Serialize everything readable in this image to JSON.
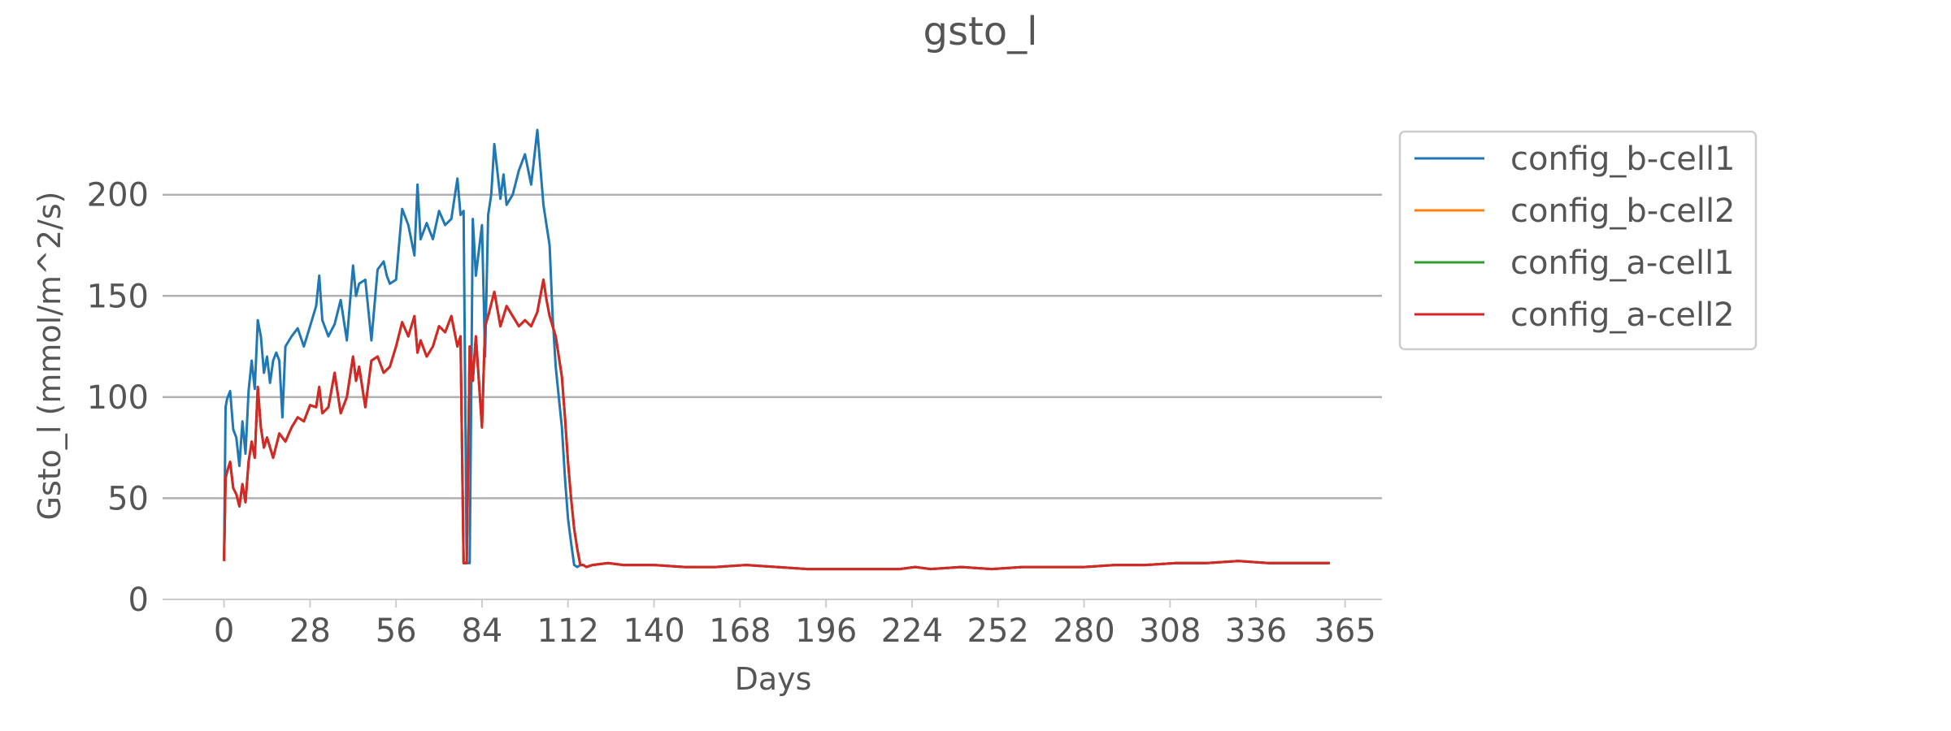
{
  "chart_data": {
    "type": "line",
    "title": "gsto_l",
    "xlabel": "Days",
    "ylabel": "Gsto_l (mmol/m^2/s)",
    "xlim": [
      -20,
      377
    ],
    "ylim": [
      0,
      232
    ],
    "xticks": [
      0,
      28,
      56,
      84,
      112,
      140,
      168,
      196,
      224,
      252,
      280,
      308,
      336,
      365
    ],
    "yticks": [
      0,
      50,
      100,
      150,
      200
    ],
    "grid": "horizontal",
    "legend_position": "outside-right",
    "series": [
      {
        "name": "config_b-cell1",
        "color": "#1f77b4",
        "x": [
          0,
          0.5,
          1,
          2,
          3,
          4,
          5,
          6,
          7,
          8,
          9,
          10,
          11,
          12,
          13,
          14,
          15,
          16,
          17,
          18,
          19,
          20,
          22,
          24,
          26,
          28,
          30,
          31,
          32,
          34,
          36,
          38,
          40,
          42,
          43,
          44,
          46,
          48,
          50,
          52,
          53,
          54,
          56,
          58,
          60,
          62,
          63,
          64,
          66,
          68,
          70,
          72,
          74,
          76,
          77,
          78,
          79,
          80,
          81,
          82,
          84,
          85,
          86,
          87,
          88,
          90,
          91,
          92,
          94,
          96,
          98,
          100,
          102,
          104,
          105,
          106,
          107,
          108,
          110,
          111,
          112,
          113,
          114,
          115,
          116,
          117,
          118,
          120,
          125,
          130,
          140,
          150,
          160,
          170,
          180,
          190,
          200,
          210,
          220,
          225,
          230,
          240,
          250,
          260,
          270,
          280,
          290,
          300,
          310,
          320,
          330,
          340,
          350,
          360
        ],
        "values": [
          19,
          95,
          99,
          103,
          84,
          80,
          66,
          88,
          72,
          103,
          118,
          104,
          138,
          130,
          112,
          120,
          107,
          118,
          122,
          118,
          90,
          125,
          130,
          134,
          125,
          135,
          145,
          160,
          138,
          130,
          136,
          148,
          128,
          165,
          150,
          156,
          158,
          128,
          163,
          167,
          160,
          156,
          158,
          193,
          185,
          170,
          205,
          178,
          186,
          178,
          192,
          185,
          188,
          208,
          190,
          192,
          18,
          18,
          188,
          160,
          185,
          120,
          190,
          200,
          225,
          198,
          210,
          195,
          200,
          212,
          220,
          205,
          232,
          195,
          185,
          175,
          140,
          115,
          85,
          60,
          40,
          28,
          17,
          16,
          17,
          17,
          16,
          17,
          18,
          17,
          17,
          16,
          16,
          17,
          16,
          15,
          15,
          15,
          15,
          16,
          15,
          16,
          15,
          16,
          16,
          16,
          17,
          17,
          18,
          18,
          19,
          18,
          18,
          18
        ]
      },
      {
        "name": "config_b-cell2",
        "color": "#ff7f0e",
        "x": [
          0,
          0.5,
          1,
          2,
          3,
          4,
          5,
          6,
          7,
          8,
          9,
          10,
          11,
          12,
          13,
          14,
          16,
          18,
          20,
          22,
          24,
          26,
          28,
          30,
          31,
          32,
          34,
          36,
          38,
          40,
          42,
          43,
          44,
          46,
          48,
          50,
          52,
          54,
          56,
          58,
          60,
          62,
          63,
          64,
          66,
          68,
          70,
          72,
          74,
          76,
          77,
          78,
          79,
          80,
          81,
          82,
          84,
          85,
          86,
          88,
          90,
          92,
          94,
          96,
          98,
          100,
          102,
          104,
          105,
          106,
          108,
          110,
          111,
          112,
          113,
          114,
          115,
          116,
          117,
          118,
          120,
          125,
          130,
          140,
          150,
          160,
          170,
          180,
          190,
          200,
          210,
          220,
          225,
          230,
          240,
          250,
          260,
          270,
          280,
          290,
          300,
          310,
          320,
          330,
          340,
          350,
          360
        ],
        "values": [
          19,
          60,
          63,
          68,
          55,
          52,
          46,
          57,
          48,
          68,
          78,
          70,
          105,
          85,
          75,
          80,
          70,
          82,
          78,
          85,
          90,
          88,
          96,
          95,
          105,
          92,
          95,
          112,
          92,
          100,
          120,
          108,
          115,
          95,
          118,
          120,
          112,
          115,
          125,
          137,
          130,
          140,
          122,
          128,
          120,
          125,
          135,
          132,
          140,
          125,
          130,
          18,
          18,
          125,
          108,
          130,
          85,
          135,
          140,
          152,
          135,
          145,
          140,
          135,
          138,
          135,
          142,
          158,
          148,
          140,
          130,
          110,
          90,
          68,
          50,
          35,
          25,
          17,
          17,
          16,
          17,
          18,
          17,
          17,
          16,
          16,
          17,
          16,
          15,
          15,
          15,
          15,
          16,
          15,
          16,
          15,
          16,
          16,
          16,
          17,
          17,
          18,
          18,
          19,
          18,
          18,
          18
        ]
      },
      {
        "name": "config_a-cell1",
        "color": "#2ca02c",
        "x": [
          0,
          0.5,
          1,
          2,
          3,
          4,
          5,
          6,
          7,
          8,
          9,
          10,
          11,
          12,
          13,
          14,
          16,
          18,
          20,
          22,
          24,
          26,
          28,
          30,
          31,
          32,
          34,
          36,
          38,
          40,
          42,
          43,
          44,
          46,
          48,
          50,
          52,
          54,
          56,
          58,
          60,
          62,
          63,
          64,
          66,
          68,
          70,
          72,
          74,
          76,
          77,
          78,
          79,
          80,
          81,
          82,
          84,
          85,
          86,
          88,
          90,
          92,
          94,
          96,
          98,
          100,
          102,
          104,
          105,
          106,
          108,
          110,
          111,
          112,
          113,
          114,
          115,
          116,
          117,
          118,
          120,
          125,
          130,
          140,
          150,
          160,
          170,
          180,
          190,
          200,
          210,
          220,
          225,
          230,
          240,
          250,
          260,
          270,
          280,
          290,
          300,
          310,
          320,
          330,
          340,
          350,
          360
        ],
        "values": [
          19,
          60,
          63,
          68,
          55,
          52,
          46,
          57,
          48,
          68,
          78,
          70,
          105,
          85,
          75,
          80,
          70,
          82,
          78,
          85,
          90,
          88,
          96,
          95,
          105,
          92,
          95,
          112,
          92,
          100,
          120,
          108,
          115,
          95,
          118,
          120,
          112,
          115,
          125,
          137,
          130,
          140,
          122,
          128,
          120,
          125,
          135,
          132,
          140,
          125,
          130,
          18,
          18,
          125,
          108,
          130,
          85,
          135,
          140,
          152,
          135,
          145,
          140,
          135,
          138,
          135,
          142,
          158,
          148,
          140,
          130,
          110,
          90,
          68,
          50,
          35,
          25,
          17,
          17,
          16,
          17,
          18,
          17,
          17,
          16,
          16,
          17,
          16,
          15,
          15,
          15,
          15,
          16,
          15,
          16,
          15,
          16,
          16,
          16,
          17,
          17,
          18,
          18,
          19,
          18,
          18,
          18
        ]
      },
      {
        "name": "config_a-cell2",
        "color": "#d62728",
        "x": [
          0,
          0.5,
          1,
          2,
          3,
          4,
          5,
          6,
          7,
          8,
          9,
          10,
          11,
          12,
          13,
          14,
          16,
          18,
          20,
          22,
          24,
          26,
          28,
          30,
          31,
          32,
          34,
          36,
          38,
          40,
          42,
          43,
          44,
          46,
          48,
          50,
          52,
          54,
          56,
          58,
          60,
          62,
          63,
          64,
          66,
          68,
          70,
          72,
          74,
          76,
          77,
          78,
          79,
          80,
          81,
          82,
          84,
          85,
          86,
          88,
          90,
          92,
          94,
          96,
          98,
          100,
          102,
          104,
          105,
          106,
          108,
          110,
          111,
          112,
          113,
          114,
          115,
          116,
          117,
          118,
          120,
          125,
          130,
          140,
          150,
          160,
          170,
          180,
          190,
          200,
          210,
          220,
          225,
          230,
          240,
          250,
          260,
          270,
          280,
          290,
          300,
          310,
          320,
          330,
          340,
          350,
          360
        ],
        "values": [
          19,
          60,
          63,
          68,
          55,
          52,
          46,
          57,
          48,
          68,
          78,
          70,
          105,
          85,
          75,
          80,
          70,
          82,
          78,
          85,
          90,
          88,
          96,
          95,
          105,
          92,
          95,
          112,
          92,
          100,
          120,
          108,
          115,
          95,
          118,
          120,
          112,
          115,
          125,
          137,
          130,
          140,
          122,
          128,
          120,
          125,
          135,
          132,
          140,
          125,
          130,
          18,
          18,
          125,
          108,
          130,
          85,
          135,
          140,
          152,
          135,
          145,
          140,
          135,
          138,
          135,
          142,
          158,
          148,
          140,
          130,
          110,
          90,
          68,
          50,
          35,
          25,
          17,
          17,
          16,
          17,
          18,
          17,
          17,
          16,
          16,
          17,
          16,
          15,
          15,
          15,
          15,
          16,
          15,
          16,
          15,
          16,
          16,
          16,
          17,
          17,
          18,
          18,
          19,
          18,
          18,
          18
        ]
      }
    ]
  },
  "colors": {
    "grid": "#b0b0b0",
    "axis": "#cccccc",
    "text": "#555555",
    "legend_border": "#cccccc"
  }
}
